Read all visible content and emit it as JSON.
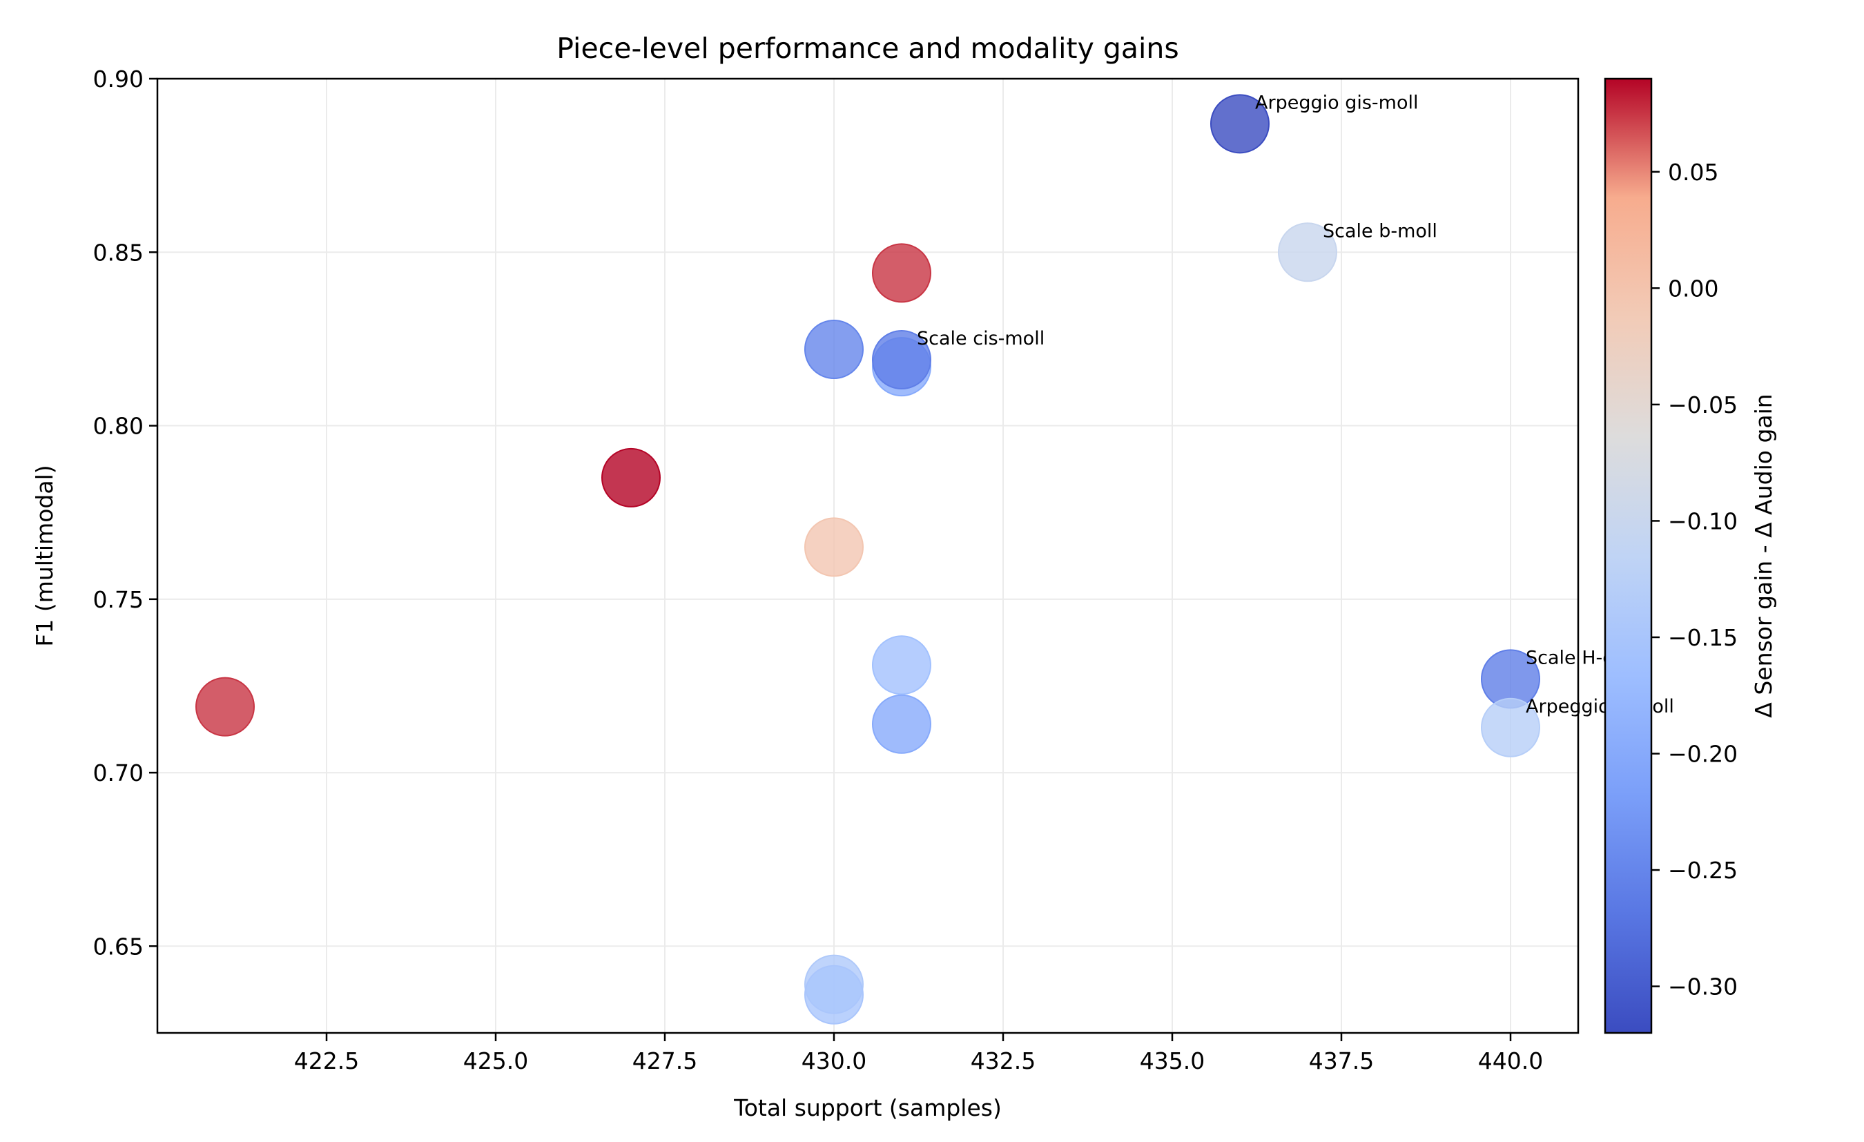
{
  "chart_data": {
    "type": "scatter",
    "title": "Piece-level performance and modality gains",
    "xlabel": "Total support (samples)",
    "ylabel": "F1 (multimodal)",
    "colorbar_label": "Δ Sensor gain - Δ Audio gain",
    "xlim": [
      420.0,
      441.0
    ],
    "ylim": [
      0.625,
      0.9
    ],
    "color_range": [
      -0.32,
      0.09
    ],
    "grid": true,
    "colormap": "coolwarm",
    "x_ticks": [
      "422.5",
      "425.0",
      "427.5",
      "430.0",
      "432.5",
      "435.0",
      "437.5",
      "440.0"
    ],
    "y_ticks": [
      "0.65",
      "0.70",
      "0.75",
      "0.80",
      "0.85",
      "0.90"
    ],
    "colorbar_ticks": [
      "−0.30",
      "−0.25",
      "−0.20",
      "−0.15",
      "−0.10",
      "−0.05",
      "0.00",
      "0.05"
    ],
    "points": [
      {
        "x": 421,
        "y": 0.719,
        "c": 0.075,
        "label": ""
      },
      {
        "x": 427,
        "y": 0.785,
        "c": 0.09,
        "label": ""
      },
      {
        "x": 430,
        "y": 0.765,
        "c": -0.005,
        "label": ""
      },
      {
        "x": 430,
        "y": 0.822,
        "c": -0.25,
        "label": ""
      },
      {
        "x": 430,
        "y": 0.639,
        "c": -0.14,
        "label": ""
      },
      {
        "x": 430,
        "y": 0.636,
        "c": -0.15,
        "label": ""
      },
      {
        "x": 431,
        "y": 0.844,
        "c": 0.075,
        "label": ""
      },
      {
        "x": 431,
        "y": 0.817,
        "c": -0.2,
        "label": ""
      },
      {
        "x": 431,
        "y": 0.819,
        "c": -0.26,
        "label": "Scale cis-moll"
      },
      {
        "x": 431,
        "y": 0.731,
        "c": -0.16,
        "label": ""
      },
      {
        "x": 431,
        "y": 0.714,
        "c": -0.2,
        "label": ""
      },
      {
        "x": 436,
        "y": 0.887,
        "c": -0.32,
        "label": "Arpeggio gis-moll"
      },
      {
        "x": 437,
        "y": 0.85,
        "c": -0.1,
        "label": "Scale b-moll"
      },
      {
        "x": 440,
        "y": 0.727,
        "c": -0.26,
        "label": "Scale H-dur"
      },
      {
        "x": 440,
        "y": 0.713,
        "c": -0.13,
        "label": "Arpeggio h-moll"
      }
    ]
  }
}
